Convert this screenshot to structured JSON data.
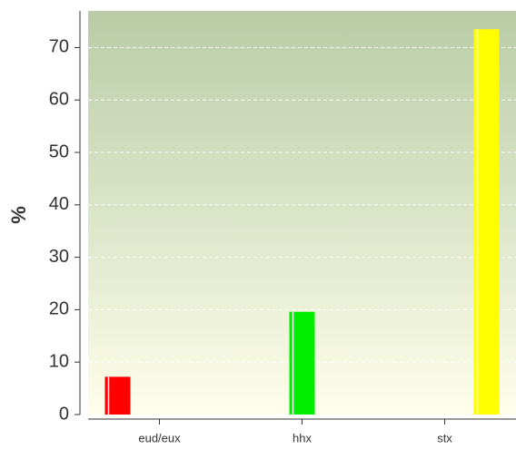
{
  "chart_data": {
    "type": "bar",
    "ylabel": "%",
    "categories": [
      "eud/eux",
      "hhx",
      "stx"
    ],
    "values": [
      7.2,
      19.6,
      73.5
    ],
    "colors": [
      "#ff0000",
      "#00ee00",
      "#ffff00"
    ],
    "ylim": [
      0,
      77
    ],
    "yticks": [
      0,
      10,
      20,
      30,
      40,
      50,
      60,
      70
    ],
    "grid": true
  }
}
